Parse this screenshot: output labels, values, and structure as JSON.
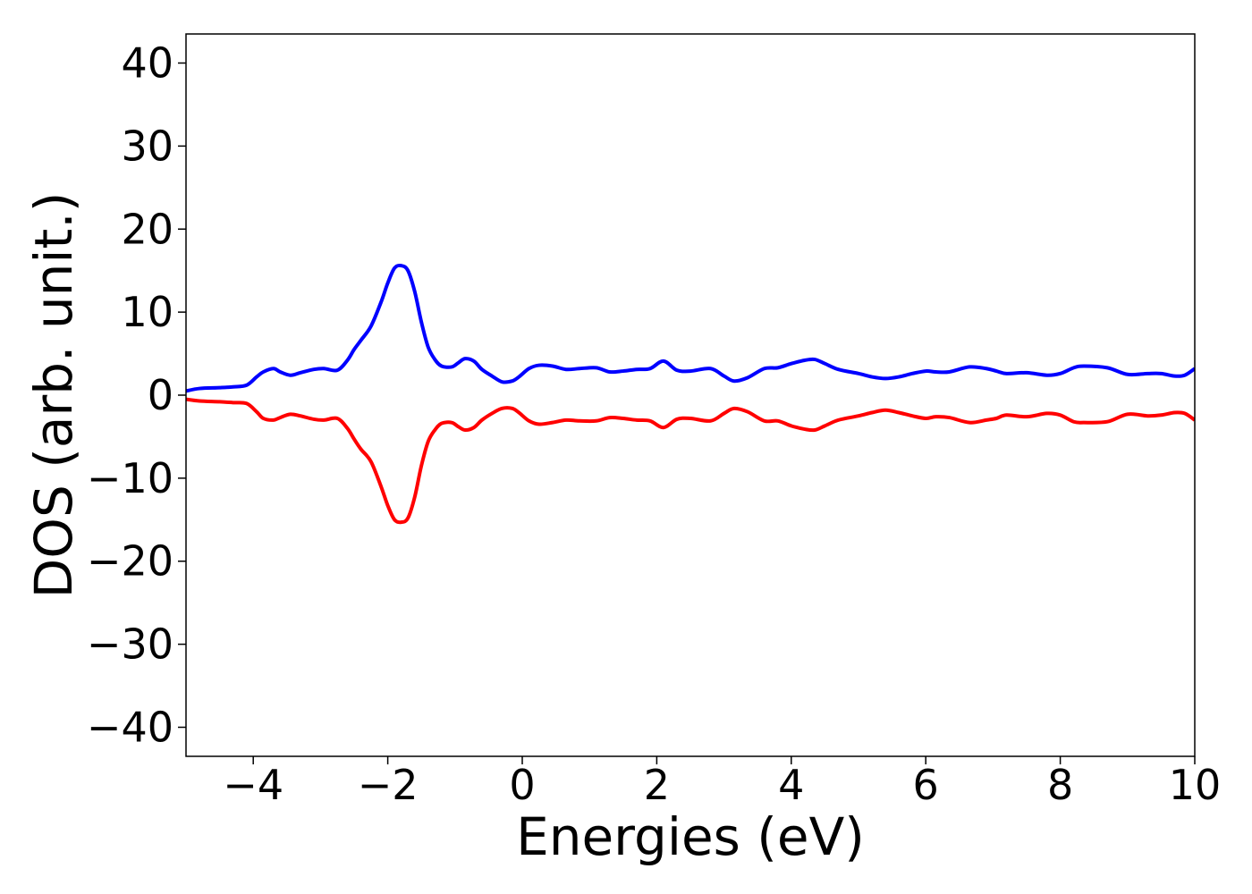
{
  "chart_data": {
    "type": "line",
    "title": "",
    "xlabel": "Energies (eV)",
    "ylabel": "DOS (arb. unit.)",
    "xlim": [
      -5,
      10
    ],
    "ylim": [
      -43.5,
      43.5
    ],
    "grid": false,
    "legend": "none",
    "x_ticks": [
      -4,
      -2,
      0,
      2,
      4,
      6,
      8,
      10
    ],
    "x_tick_labels": [
      "−4",
      "−2",
      "0",
      "2",
      "4",
      "6",
      "8",
      "10"
    ],
    "y_ticks": [
      40,
      30,
      20,
      10,
      0,
      -10,
      -20,
      -30,
      -40
    ],
    "y_tick_labels": [
      "40",
      "30",
      "20",
      "10",
      "0",
      "−10",
      "−20",
      "−30",
      "−40"
    ],
    "series": [
      {
        "color": "#0000ff",
        "x": [
          -5.0,
          -4.8,
          -4.5,
          -4.3,
          -4.1,
          -3.95,
          -3.85,
          -3.7,
          -3.6,
          -3.45,
          -3.3,
          -3.1,
          -2.95,
          -2.75,
          -2.6,
          -2.5,
          -2.4,
          -2.25,
          -2.1,
          -2.0,
          -1.9,
          -1.8,
          -1.7,
          -1.6,
          -1.5,
          -1.4,
          -1.3,
          -1.2,
          -1.05,
          -0.95,
          -0.85,
          -0.72,
          -0.6,
          -0.45,
          -0.3,
          -0.15,
          -0.05,
          0.1,
          0.25,
          0.45,
          0.65,
          0.85,
          1.1,
          1.3,
          1.5,
          1.7,
          1.9,
          2.1,
          2.3,
          2.5,
          2.8,
          3.0,
          3.15,
          3.35,
          3.6,
          3.8,
          4.0,
          4.2,
          4.35,
          4.5,
          4.7,
          5.0,
          5.2,
          5.4,
          5.6,
          5.8,
          6.0,
          6.15,
          6.35,
          6.65,
          6.9,
          7.05,
          7.2,
          7.5,
          7.8,
          8.0,
          8.2,
          8.35,
          8.7,
          9.0,
          9.3,
          9.5,
          9.7,
          9.85,
          10.0
        ],
        "values": [
          0.5,
          0.8,
          0.9,
          1.0,
          1.2,
          2.2,
          2.8,
          3.2,
          2.8,
          2.4,
          2.7,
          3.1,
          3.2,
          3.0,
          4.2,
          5.5,
          6.6,
          8.3,
          11.2,
          13.5,
          15.3,
          15.6,
          15.0,
          12.5,
          8.8,
          5.8,
          4.3,
          3.5,
          3.4,
          3.9,
          4.4,
          4.1,
          3.1,
          2.3,
          1.6,
          1.7,
          2.2,
          3.2,
          3.6,
          3.5,
          3.1,
          3.2,
          3.3,
          2.8,
          2.9,
          3.1,
          3.2,
          4.1,
          3.0,
          2.9,
          3.2,
          2.3,
          1.7,
          2.1,
          3.2,
          3.3,
          3.8,
          4.2,
          4.3,
          3.8,
          3.1,
          2.6,
          2.2,
          2.0,
          2.2,
          2.6,
          2.9,
          2.8,
          2.8,
          3.4,
          3.2,
          2.9,
          2.6,
          2.7,
          2.4,
          2.6,
          3.3,
          3.5,
          3.3,
          2.5,
          2.6,
          2.6,
          2.3,
          2.4,
          3.2
        ]
      },
      {
        "color": "#ff0000",
        "x": [
          -5.0,
          -4.8,
          -4.5,
          -4.3,
          -4.1,
          -3.95,
          -3.85,
          -3.7,
          -3.6,
          -3.45,
          -3.3,
          -3.1,
          -2.95,
          -2.75,
          -2.6,
          -2.5,
          -2.4,
          -2.25,
          -2.1,
          -2.0,
          -1.9,
          -1.8,
          -1.7,
          -1.6,
          -1.5,
          -1.4,
          -1.3,
          -1.2,
          -1.05,
          -0.95,
          -0.85,
          -0.72,
          -0.6,
          -0.45,
          -0.3,
          -0.15,
          -0.05,
          0.1,
          0.25,
          0.45,
          0.65,
          0.85,
          1.1,
          1.3,
          1.5,
          1.7,
          1.9,
          2.1,
          2.3,
          2.5,
          2.8,
          3.0,
          3.15,
          3.35,
          3.6,
          3.8,
          4.0,
          4.2,
          4.35,
          4.5,
          4.7,
          5.0,
          5.2,
          5.4,
          5.6,
          5.8,
          6.0,
          6.15,
          6.35,
          6.65,
          6.9,
          7.05,
          7.2,
          7.5,
          7.8,
          8.0,
          8.2,
          8.35,
          8.7,
          9.0,
          9.3,
          9.5,
          9.7,
          9.85,
          10.0
        ],
        "values": [
          -0.5,
          -0.7,
          -0.8,
          -0.9,
          -1.0,
          -2.0,
          -2.8,
          -3.0,
          -2.7,
          -2.3,
          -2.5,
          -2.9,
          -3.0,
          -2.8,
          -4.0,
          -5.3,
          -6.5,
          -8.0,
          -11.0,
          -13.3,
          -15.0,
          -15.3,
          -14.8,
          -12.3,
          -8.5,
          -5.6,
          -4.2,
          -3.4,
          -3.3,
          -3.8,
          -4.2,
          -3.9,
          -3.0,
          -2.2,
          -1.6,
          -1.6,
          -2.1,
          -3.1,
          -3.5,
          -3.3,
          -3.0,
          -3.1,
          -3.1,
          -2.7,
          -2.8,
          -3.0,
          -3.1,
          -3.9,
          -2.9,
          -2.8,
          -3.1,
          -2.2,
          -1.6,
          -2.0,
          -3.1,
          -3.1,
          -3.7,
          -4.1,
          -4.2,
          -3.7,
          -3.0,
          -2.5,
          -2.1,
          -1.8,
          -2.1,
          -2.5,
          -2.8,
          -2.6,
          -2.7,
          -3.3,
          -3.0,
          -2.8,
          -2.4,
          -2.6,
          -2.2,
          -2.4,
          -3.2,
          -3.3,
          -3.2,
          -2.3,
          -2.5,
          -2.4,
          -2.1,
          -2.2,
          -3.0
        ]
      }
    ]
  }
}
